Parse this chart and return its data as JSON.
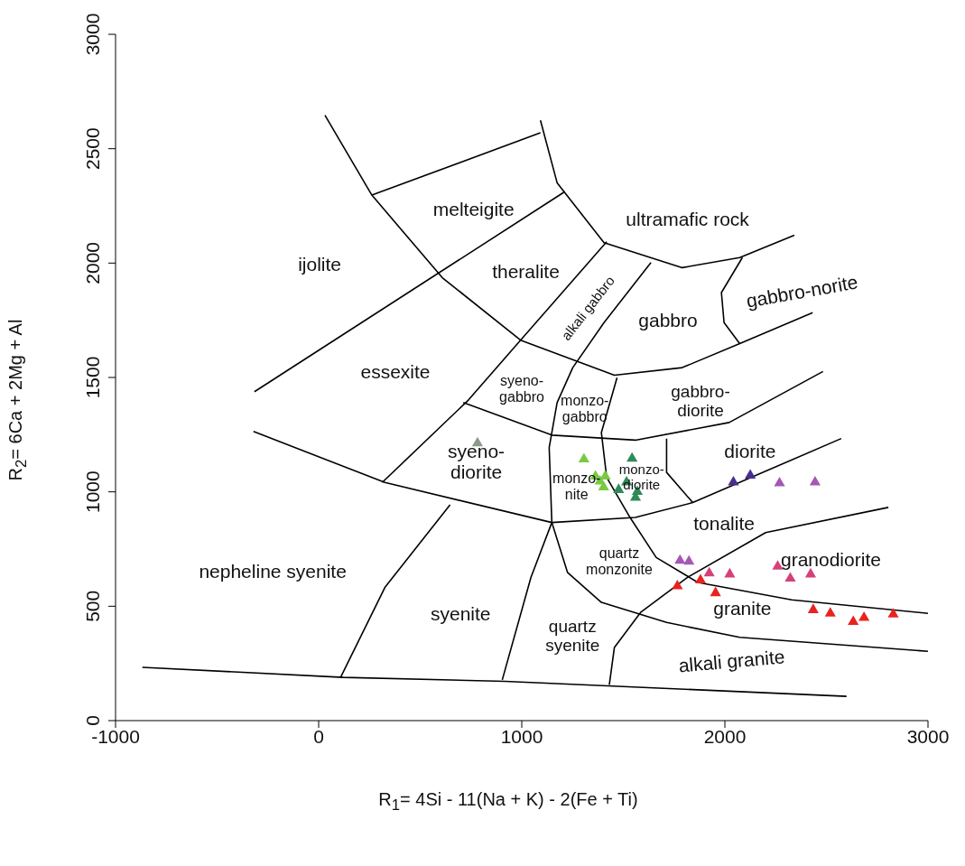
{
  "chart_data": {
    "type": "scatter",
    "xlabel": "R$_{1}$= 4Si - 11(Na + K) - 2(Fe + Ti)",
    "ylabel": "R$_{2}$= 6Ca + 2Mg + Al",
    "xlim": [
      -1000,
      3000
    ],
    "xticks": [
      -1000,
      0,
      1000,
      2000,
      3000
    ],
    "ylim": [
      0,
      3000
    ],
    "yticks": [
      0,
      500,
      1000,
      1500,
      2000,
      2500,
      3000
    ],
    "grid": false,
    "series": [
      {
        "type": "line",
        "color": "#000000",
        "x": [
          -868,
          121,
          917,
          2599
        ],
        "values": [
          233,
          189,
          172,
          106
        ]
      },
      {
        "type": "line",
        "color": "#000000",
        "x": [
          31,
          262,
          609,
          994,
          1456,
          1790,
          2073,
          2432
        ],
        "values": [
          2646,
          2297,
          1936,
          1663,
          1510,
          1543,
          1648,
          1783
        ]
      },
      {
        "type": "line",
        "color": "#000000",
        "x": [
          1092,
          1174,
          1405,
          1790,
          2073,
          2342
        ],
        "values": [
          2624,
          2351,
          2089,
          1980,
          2024,
          2122
        ]
      },
      {
        "type": "line",
        "color": "#000000",
        "x": [
          262,
          1092
        ],
        "values": [
          2297,
          2570
        ]
      },
      {
        "type": "line",
        "color": "#000000",
        "x": [
          -316,
          1212
        ],
        "values": [
          1438,
          2312
        ]
      },
      {
        "type": "line",
        "color": "#000000",
        "x": [
          313,
          737,
          994,
          1418
        ],
        "values": [
          1041,
          1401,
          1663,
          2093
        ]
      },
      {
        "type": "line",
        "color": "#000000",
        "x": [
          1636,
          1405,
          1251,
          1174,
          1135,
          1148,
          1225,
          1392,
          1713,
          2073,
          3000
        ],
        "values": [
          2002,
          1740,
          1543,
          1390,
          1194,
          866,
          648,
          517,
          429,
          364,
          303
        ]
      },
      {
        "type": "line",
        "color": "#000000",
        "x": [
          1469,
          1392,
          1418,
          1533,
          1662,
          1867,
          2329,
          3000
        ],
        "values": [
          1499,
          1259,
          1063,
          888,
          713,
          604,
          528,
          469
        ]
      },
      {
        "type": "line",
        "color": "#000000",
        "x": [
          -321,
          326,
          1148,
          1559,
          1842,
          2573
        ],
        "values": [
          1264,
          1041,
          866,
          888,
          953,
          1233
        ]
      },
      {
        "type": "line",
        "color": "#000000",
        "x": [
          712,
          1148,
          1559,
          2021,
          2483
        ],
        "values": [
          1390,
          1248,
          1226,
          1303,
          1526
        ]
      },
      {
        "type": "line",
        "color": "#000000",
        "x": [
          1713,
          1713,
          1842
        ],
        "values": [
          1233,
          1085,
          953
        ]
      },
      {
        "type": "line",
        "color": "#000000",
        "x": [
          2086,
          1983,
          1996,
          2073
        ],
        "values": [
          2024,
          1871,
          1740,
          1648
        ]
      },
      {
        "type": "line",
        "color": "#000000",
        "x": [
          1431,
          1456,
          1585,
          1816,
          2201,
          2805
        ],
        "values": [
          156,
          320,
          473,
          626,
          822,
          932
        ]
      },
      {
        "type": "line",
        "color": "#000000",
        "x": [
          108,
          326,
          647
        ],
        "values": [
          189,
          582,
          943
        ]
      },
      {
        "type": "line",
        "color": "#000000",
        "x": [
          904,
          1045,
          1148
        ],
        "values": [
          178,
          626,
          866
        ]
      },
      {
        "type": "scatter",
        "marker": "triangle",
        "color": "#8c9a8c",
        "x": [
          782
        ],
        "values": [
          1213
        ]
      },
      {
        "type": "scatter",
        "marker": "triangle",
        "color": "#7ac943",
        "x": [
          1306,
          1363,
          1411,
          1385,
          1403
        ],
        "values": [
          1143,
          1068,
          1068,
          1046,
          1020
        ]
      },
      {
        "type": "scatter",
        "marker": "triangle",
        "color": "#2e8b57",
        "x": [
          1543,
          1516,
          1477,
          1569,
          1560
        ],
        "values": [
          1146,
          1042,
          1009,
          1001,
          975
        ]
      },
      {
        "type": "scatter",
        "marker": "triangle",
        "color": "#4b2c8f",
        "x": [
          2042,
          2125
        ],
        "values": [
          1042,
          1072
        ]
      },
      {
        "type": "scatter",
        "marker": "triangle",
        "color": "#a557b5",
        "x": [
          2269,
          2444,
          1779,
          1823
        ],
        "values": [
          1038,
          1042,
          700,
          696
        ]
      },
      {
        "type": "scatter",
        "marker": "triangle",
        "color": "#d6407a",
        "x": [
          1923,
          2024,
          2260,
          2322,
          2422
        ],
        "values": [
          644,
          640,
          674,
          622,
          640
        ]
      },
      {
        "type": "scatter",
        "marker": "triangle",
        "color": "#e8231f",
        "x": [
          1766,
          1880,
          1954,
          2435,
          2519,
          2632,
          2685,
          2829
        ],
        "values": [
          588,
          614,
          558,
          484,
          469,
          432,
          450,
          465
        ]
      }
    ],
    "annotations": [
      "ijolite",
      "melteigite",
      "ultramafic rock",
      "theralite",
      "alkali gabbro",
      "gabbro",
      "gabbro-norite",
      "essexite",
      "syeno-\ngabbro",
      "monzo-\ngabbro",
      "gabbro-\ndiorite",
      "syeno-\ndiorite",
      "diorite",
      "monzo-\nnite",
      "monzo-\ndiorite",
      "tonalite",
      "quartz\nmonzonite",
      "granodiorite",
      "nepheline syenite",
      "syenite",
      "quartz\nsyenite",
      "granite",
      "alkali granite"
    ]
  }
}
